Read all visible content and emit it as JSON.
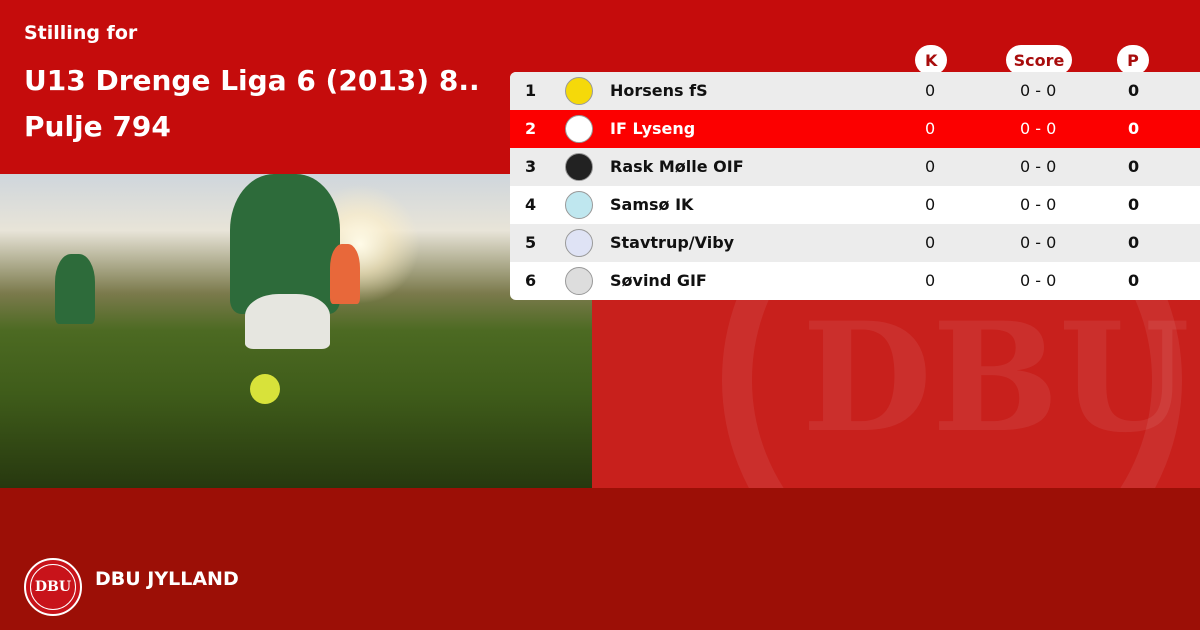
{
  "header": {
    "subtitle": "Stilling for",
    "title_line1": "U13 Drenge Liga 6 (2013) 8..",
    "title_line2": "Pulje 794"
  },
  "columns": {
    "k": "K",
    "score": "Score",
    "p": "P"
  },
  "rows": [
    {
      "rank": "1",
      "team": "Horsens fS",
      "k": "0",
      "score": "0 - 0",
      "p": "0",
      "logo_color": "#f5d90a"
    },
    {
      "rank": "2",
      "team": "IF Lyseng",
      "k": "0",
      "score": "0 - 0",
      "p": "0",
      "logo_color": "#ffffff"
    },
    {
      "rank": "3",
      "team": "Rask Mølle OIF",
      "k": "0",
      "score": "0 - 0",
      "p": "0",
      "logo_color": "#222222"
    },
    {
      "rank": "4",
      "team": "Samsø IK",
      "k": "0",
      "score": "0 - 0",
      "p": "0",
      "logo_color": "#bfe7ef"
    },
    {
      "rank": "5",
      "team": "Stavtrup/Viby",
      "k": "0",
      "score": "0 - 0",
      "p": "0",
      "logo_color": "#dfe3f5"
    },
    {
      "rank": "6",
      "team": "Søvind GIF",
      "k": "0",
      "score": "0 - 0",
      "p": "0",
      "logo_color": "#dddddd"
    }
  ],
  "footer": {
    "brand": "DBU JYLLAND",
    "logo_text": "DBU"
  },
  "colors": {
    "primary": "#c50c0c",
    "footer": "#9c0f06",
    "highlight": "#fc0000"
  }
}
